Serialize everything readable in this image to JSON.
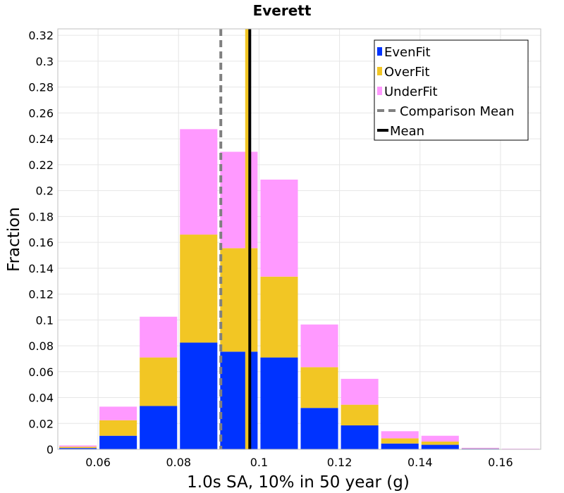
{
  "chart_data": {
    "type": "bar",
    "stacked": true,
    "title": "Everett",
    "xlabel": "1.0s SA, 10% in 50 year (g)",
    "ylabel": "Fraction",
    "xlim": [
      0.05,
      0.17
    ],
    "ylim": [
      0,
      0.325
    ],
    "xticks": [
      0.06,
      0.08,
      0.1,
      0.12,
      0.14,
      0.16
    ],
    "xtick_labels": [
      "0.06",
      "0.08",
      "0.1",
      "0.12",
      "0.14",
      "0.16"
    ],
    "yticks": [
      0,
      0.02,
      0.04,
      0.06,
      0.08,
      0.1,
      0.12,
      0.14,
      0.16,
      0.18,
      0.2,
      0.22,
      0.24,
      0.26,
      0.28,
      0.3,
      0.32
    ],
    "ytick_labels": [
      "0",
      "0.02",
      "0.04",
      "0.06",
      "0.08",
      "0.1",
      "0.12",
      "0.14",
      "0.16",
      "0.18",
      "0.2",
      "0.22",
      "0.24",
      "0.26",
      "0.28",
      "0.3",
      "0.32"
    ],
    "grid": true,
    "legend_position": "top-right",
    "bin_width": 0.01,
    "x": [
      0.055,
      0.065,
      0.075,
      0.085,
      0.095,
      0.105,
      0.115,
      0.125,
      0.135,
      0.145,
      0.155,
      0.165
    ],
    "series": [
      {
        "name": "EvenFit",
        "color": "#0033ff",
        "values": [
          0.001,
          0.0105,
          0.0335,
          0.0825,
          0.0755,
          0.071,
          0.032,
          0.0185,
          0.0045,
          0.0035,
          0.0005,
          0.0
        ]
      },
      {
        "name": "OverFit",
        "color": "#f2c624",
        "values": [
          0.001,
          0.012,
          0.0375,
          0.0835,
          0.08,
          0.0625,
          0.0315,
          0.016,
          0.004,
          0.0025,
          0.0002,
          0.0
        ]
      },
      {
        "name": "UnderFit",
        "color": "#ff99ff",
        "values": [
          0.001,
          0.0105,
          0.0315,
          0.0815,
          0.0745,
          0.075,
          0.033,
          0.02,
          0.0055,
          0.0045,
          0.0005,
          0.0005
        ]
      }
    ],
    "lines": [
      {
        "name": "Comparison Mean",
        "x": 0.0905,
        "color": "#808080",
        "style": "dashed"
      },
      {
        "name": "Mean",
        "x": 0.0977,
        "color": "#000000",
        "style": "solid"
      }
    ],
    "line_highlight_color": "#f2c624"
  }
}
